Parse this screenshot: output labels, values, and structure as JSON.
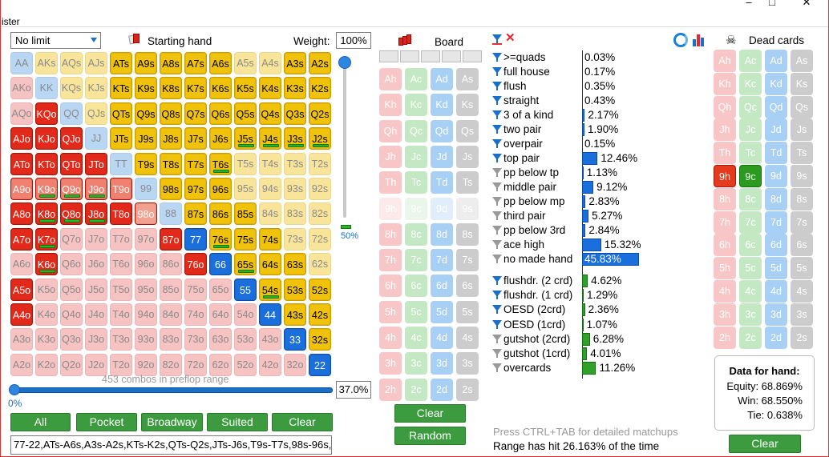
{
  "window": {
    "title_fragment": "ister",
    "minimize": "–",
    "maximize": "□",
    "close": "✕"
  },
  "range_panel": {
    "game_select": "No limit",
    "starting_hand_label": "Starting hand",
    "weight_label": "Weight:",
    "weight_value": "100%",
    "slider_value": "50%",
    "combos_text": "453 combos in preflop range",
    "hslider_left": "0%",
    "hslider_value": "37.0%",
    "buttons": [
      "All",
      "Pocket",
      "Broadway",
      "Suited",
      "Clear"
    ],
    "range_text": "77-22,ATs-A6s,A3s-A2s,KTs-K2s,QTs-Q2s,JTs-J6s,T9s-T7s,98s-96s,8"
  },
  "grid": {
    "rows": [
      [
        "AA",
        "AKs",
        "AQs",
        "AJs",
        "ATs",
        "A9s",
        "A8s",
        "A7s",
        "A6s",
        "A5s",
        "A4s",
        "A3s",
        "A2s"
      ],
      [
        "AKo",
        "KK",
        "KQs",
        "KJs",
        "KTs",
        "K9s",
        "K8s",
        "K7s",
        "K6s",
        "K5s",
        "K4s",
        "K3s",
        "K2s"
      ],
      [
        "AQo",
        "KQo",
        "QQ",
        "QJs",
        "QTs",
        "Q9s",
        "Q8s",
        "Q7s",
        "Q6s",
        "Q5s",
        "Q4s",
        "Q3s",
        "Q2s"
      ],
      [
        "AJo",
        "KJo",
        "QJo",
        "JJ",
        "JTs",
        "J9s",
        "J8s",
        "J7s",
        "J6s",
        "J5s",
        "J4s",
        "J3s",
        "J2s"
      ],
      [
        "ATo",
        "KTo",
        "QTo",
        "JTo",
        "TT",
        "T9s",
        "T8s",
        "T7s",
        "T6s",
        "T5s",
        "T4s",
        "T3s",
        "T2s"
      ],
      [
        "A9o",
        "K9o",
        "Q9o",
        "J9o",
        "T9o",
        "99",
        "98s",
        "97s",
        "96s",
        "95s",
        "94s",
        "93s",
        "92s"
      ],
      [
        "A8o",
        "K8o",
        "Q8o",
        "J8o",
        "T8o",
        "98o",
        "88",
        "87s",
        "86s",
        "85s",
        "84s",
        "83s",
        "82s"
      ],
      [
        "A7o",
        "K7o",
        "Q7o",
        "J7o",
        "T7o",
        "97o",
        "87o",
        "77",
        "76s",
        "75s",
        "74s",
        "73s",
        "72s"
      ],
      [
        "A6o",
        "K6o",
        "Q6o",
        "J6o",
        "T6o",
        "96o",
        "86o",
        "76o",
        "66",
        "65s",
        "64s",
        "63s",
        "62s"
      ],
      [
        "A5o",
        "K5o",
        "Q5o",
        "J5o",
        "T5o",
        "95o",
        "85o",
        "75o",
        "65o",
        "55",
        "54s",
        "53s",
        "52s"
      ],
      [
        "A4o",
        "K4o",
        "Q4o",
        "J4o",
        "T4o",
        "94o",
        "84o",
        "74o",
        "64o",
        "54o",
        "44",
        "43s",
        "42s"
      ],
      [
        "A3o",
        "K3o",
        "Q3o",
        "J3o",
        "T3o",
        "93o",
        "83o",
        "73o",
        "63o",
        "53o",
        "43o",
        "33",
        "32s"
      ],
      [
        "A2o",
        "K2o",
        "Q2o",
        "J2o",
        "T2o",
        "92o",
        "82o",
        "72o",
        "62o",
        "52o",
        "42o",
        "32o",
        "22"
      ]
    ],
    "selected": [
      "ATs",
      "A9s",
      "A8s",
      "A7s",
      "A6s",
      "A3s",
      "A2s",
      "KTs",
      "K9s",
      "K8s",
      "K7s",
      "K6s",
      "K5s",
      "K4s",
      "K3s",
      "K2s",
      "KQo",
      "QTs",
      "Q9s",
      "Q8s",
      "Q7s",
      "Q6s",
      "Q5s",
      "Q4s",
      "Q3s",
      "Q2s",
      "AJo",
      "KJo",
      "QJo",
      "JTs",
      "J9s",
      "J8s",
      "J7s",
      "J6s",
      "J5s",
      "J4s",
      "J3s",
      "J2s",
      "ATo",
      "KTo",
      "QTo",
      "JTo",
      "T9s",
      "T8s",
      "T7s",
      "T6s",
      "K9o",
      "Q9o",
      "J9o",
      "T9o",
      "98s",
      "97s",
      "96s",
      "A8o",
      "K8o",
      "Q8o",
      "J8o",
      "T8o",
      "98o",
      "87s",
      "86s",
      "85s",
      "A7o",
      "K7o",
      "87o",
      "77",
      "76s",
      "75s",
      "74s",
      "K6o",
      "76o",
      "66",
      "65s",
      "64s",
      "63s",
      "A5o",
      "55",
      "54s",
      "53s",
      "52s",
      "A4o",
      "44",
      "43s",
      "42s",
      "33",
      "32s",
      "22"
    ],
    "partial": [
      "A9o",
      "K9o",
      "Q9o",
      "J9o",
      "T9o",
      "98o"
    ],
    "greenmark": [
      "J5s",
      "J4s",
      "J3s",
      "J2s",
      "T6s",
      "K9o",
      "Q9o",
      "J9o",
      "K8o",
      "Q8o",
      "J8o",
      "K7o",
      "76s",
      "65s",
      "54s",
      "K6o"
    ]
  },
  "board": {
    "label": "Board",
    "ranks": [
      "A",
      "K",
      "Q",
      "J",
      "T",
      "9",
      "8",
      "7",
      "6",
      "5",
      "4",
      "3",
      "2"
    ],
    "suits": [
      "h",
      "c",
      "d",
      "s"
    ],
    "clear": "Clear",
    "random": "Random"
  },
  "stats": {
    "made": [
      {
        "label": ">=quads",
        "value": "0.03%",
        "pct": 0.03,
        "active": true
      },
      {
        "label": "full house",
        "value": "0.17%",
        "pct": 0.17,
        "active": true
      },
      {
        "label": "flush",
        "value": "0.35%",
        "pct": 0.35,
        "active": true
      },
      {
        "label": "straight",
        "value": "0.43%",
        "pct": 0.43,
        "active": true
      },
      {
        "label": "3 of a kind",
        "value": "2.17%",
        "pct": 2.17,
        "active": true
      },
      {
        "label": "two pair",
        "value": "1.90%",
        "pct": 1.9,
        "active": true
      },
      {
        "label": "overpair",
        "value": "0.15%",
        "pct": 0.15,
        "active": true
      },
      {
        "label": "top pair",
        "value": "12.46%",
        "pct": 12.46,
        "active": true
      },
      {
        "label": "pp below tp",
        "value": "1.13%",
        "pct": 1.13,
        "active": false
      },
      {
        "label": "middle pair",
        "value": "9.12%",
        "pct": 9.12,
        "active": false
      },
      {
        "label": "pp below mp",
        "value": "2.83%",
        "pct": 2.83,
        "active": false
      },
      {
        "label": "third pair",
        "value": "5.27%",
        "pct": 5.27,
        "active": false
      },
      {
        "label": "pp below 3rd",
        "value": "2.84%",
        "pct": 2.84,
        "active": false
      },
      {
        "label": "ace high",
        "value": "15.32%",
        "pct": 15.32,
        "active": false
      },
      {
        "label": "no made hand",
        "value": "45.83%",
        "pct": 45.83,
        "active": false
      }
    ],
    "draws": [
      {
        "label": "flushdr. (2 crd)",
        "value": "4.62%",
        "pct": 4.62,
        "active": true
      },
      {
        "label": "flushdr. (1 crd)",
        "value": "1.29%",
        "pct": 1.29,
        "active": true
      },
      {
        "label": "OESD (2crd)",
        "value": "2.36%",
        "pct": 2.36,
        "active": true
      },
      {
        "label": "OESD (1crd)",
        "value": "1.07%",
        "pct": 1.07,
        "active": true
      },
      {
        "label": "gutshot (2crd)",
        "value": "6.28%",
        "pct": 6.28,
        "active": false
      },
      {
        "label": "gutshot (1crd)",
        "value": "4.01%",
        "pct": 4.01,
        "active": false
      },
      {
        "label": "overcards",
        "value": "11.26%",
        "pct": 11.26,
        "active": false
      }
    ],
    "hint": "Press CTRL+TAB for detailed matchups",
    "summary": "Range has hit 26.163% of the time"
  },
  "dead": {
    "label": "Dead cards",
    "selected": [
      "9h",
      "9c"
    ],
    "clear": "Clear"
  },
  "hand_data": {
    "title": "Data for hand:",
    "equity": "Equity: 68.869%",
    "win": "Win: 68.550%",
    "tie": "Tie: 0.638%"
  }
}
